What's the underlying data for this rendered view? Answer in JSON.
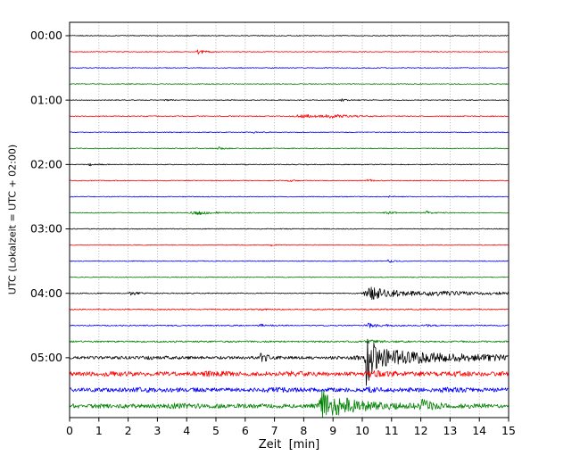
{
  "chart_data": {
    "type": "line",
    "variant": "helicorder-seismogram-drum-plot",
    "title": "",
    "xlabel": "Zeit  [min]",
    "ylabel": "UTC (Lokalzeit = UTC + 02:00)",
    "xlim": [
      0,
      15
    ],
    "grid": {
      "vertical": true,
      "style": "dotted",
      "color": "#aaaaaa"
    },
    "x_ticks": [
      "0",
      "1",
      "2",
      "3",
      "4",
      "5",
      "6",
      "7",
      "8",
      "9",
      "10",
      "11",
      "12",
      "13",
      "14",
      "15"
    ],
    "y_ticks": [
      {
        "label": "00:00",
        "trace_index": 0
      },
      {
        "label": "01:00",
        "trace_index": 4
      },
      {
        "label": "02:00",
        "trace_index": 8
      },
      {
        "label": "03:00",
        "trace_index": 12
      },
      {
        "label": "04:00",
        "trace_index": 16
      },
      {
        "label": "05:00",
        "trace_index": 20
      }
    ],
    "trace_colors_cycle": [
      "#000000",
      "#ff0000",
      "#0000ff",
      "#008000"
    ],
    "minutes_per_trace": 15,
    "traces": [
      {
        "time": "00:00",
        "color": "#000000",
        "base_amp": 0.45,
        "events": []
      },
      {
        "time": "00:15",
        "color": "#ff0000",
        "base_amp": 0.45,
        "events": [
          {
            "t": 4.4,
            "a": 2.2,
            "d": 0.15
          }
        ]
      },
      {
        "time": "00:30",
        "color": "#0000ff",
        "base_amp": 0.45,
        "events": []
      },
      {
        "time": "00:45",
        "color": "#008000",
        "base_amp": 0.5,
        "events": []
      },
      {
        "time": "01:00",
        "color": "#000000",
        "base_amp": 0.45,
        "events": [
          {
            "t": 3.2,
            "a": 1.2,
            "d": 0.12
          },
          {
            "t": 9.3,
            "a": 1.2,
            "d": 0.12
          }
        ]
      },
      {
        "time": "01:15",
        "color": "#ff0000",
        "base_amp": 0.5,
        "events": [
          {
            "t": 7.9,
            "a": 1.8,
            "d": 0.5
          },
          {
            "t": 8.9,
            "a": 1.6,
            "d": 0.4
          }
        ]
      },
      {
        "time": "01:30",
        "color": "#0000ff",
        "base_amp": 0.45,
        "events": [
          {
            "t": 6.3,
            "a": 1.3,
            "d": 0.1
          }
        ]
      },
      {
        "time": "01:45",
        "color": "#008000",
        "base_amp": 0.5,
        "events": [
          {
            "t": 5.1,
            "a": 1.8,
            "d": 0.12
          }
        ]
      },
      {
        "time": "02:00",
        "color": "#000000",
        "base_amp": 0.45,
        "events": [
          {
            "t": 0.7,
            "a": 1.3,
            "d": 0.15
          }
        ]
      },
      {
        "time": "02:15",
        "color": "#ff0000",
        "base_amp": 0.45,
        "events": [
          {
            "t": 7.5,
            "a": 1.3,
            "d": 0.1
          },
          {
            "t": 10.2,
            "a": 1.5,
            "d": 0.12
          }
        ]
      },
      {
        "time": "02:30",
        "color": "#0000ff",
        "base_amp": 0.45,
        "events": [
          {
            "t": 10.9,
            "a": 1.3,
            "d": 0.1
          }
        ]
      },
      {
        "time": "02:45",
        "color": "#008000",
        "base_amp": 0.5,
        "events": [
          {
            "t": 4.3,
            "a": 2.2,
            "d": 0.35
          },
          {
            "t": 10.8,
            "a": 1.6,
            "d": 0.15
          },
          {
            "t": 12.2,
            "a": 1.6,
            "d": 0.15
          }
        ]
      },
      {
        "time": "03:00",
        "color": "#000000",
        "base_amp": 0.45,
        "events": []
      },
      {
        "time": "03:15",
        "color": "#ff0000",
        "base_amp": 0.45,
        "events": [
          {
            "t": 6.9,
            "a": 1.1,
            "d": 0.1
          }
        ]
      },
      {
        "time": "03:30",
        "color": "#0000ff",
        "base_amp": 0.45,
        "events": [
          {
            "t": 10.9,
            "a": 1.6,
            "d": 0.12
          }
        ]
      },
      {
        "time": "03:45",
        "color": "#008000",
        "base_amp": 0.5,
        "events": []
      },
      {
        "time": "04:00",
        "color": "#000000",
        "base_amp": 0.55,
        "events": [
          {
            "t": 2.1,
            "a": 1.8,
            "d": 0.15
          },
          {
            "t": 10.2,
            "a": 6.5,
            "d": 0.3
          },
          {
            "t": 10.6,
            "a": 2.5,
            "d": 1.2
          },
          {
            "t": 12.5,
            "a": 1.2,
            "d": 3
          }
        ]
      },
      {
        "time": "04:15",
        "color": "#ff0000",
        "base_amp": 0.65,
        "events": [
          {
            "t": 6.4,
            "a": 1.3,
            "d": 0.1
          }
        ]
      },
      {
        "time": "04:30",
        "color": "#0000ff",
        "base_amp": 0.65,
        "events": [
          {
            "t": 6.5,
            "a": 1.6,
            "d": 0.12
          },
          {
            "t": 10.2,
            "a": 2.2,
            "d": 0.3
          },
          {
            "t": 12.2,
            "a": 1.4,
            "d": 0.1
          }
        ]
      },
      {
        "time": "04:45",
        "color": "#008000",
        "base_amp": 0.9,
        "events": [
          {
            "t": 10.2,
            "a": 1.4,
            "d": 0.3
          }
        ]
      },
      {
        "time": "05:00",
        "color": "#000000",
        "base_amp": 1.6,
        "events": [
          {
            "t": 2.6,
            "a": 1.0,
            "d": 0.4
          },
          {
            "t": 6.55,
            "a": 5.0,
            "d": 0.12
          },
          {
            "t": 10.15,
            "a": 30.0,
            "d": 0.12
          },
          {
            "t": 10.45,
            "a": 7.0,
            "d": 0.8
          },
          {
            "t": 11.5,
            "a": 3.0,
            "d": 4
          }
        ]
      },
      {
        "time": "05:15",
        "color": "#ff0000",
        "base_amp": 2.2,
        "events": [
          {
            "t": 1.2,
            "a": 1.0,
            "d": 0.5
          },
          {
            "t": 4.8,
            "a": 1.2,
            "d": 0.6
          },
          {
            "t": 7.6,
            "a": 1.0,
            "d": 0.5
          },
          {
            "t": 10.3,
            "a": 1.6,
            "d": 0.7
          },
          {
            "t": 13.2,
            "a": 1.0,
            "d": 0.5
          }
        ]
      },
      {
        "time": "05:30",
        "color": "#0000ff",
        "base_amp": 2.2,
        "events": [
          {
            "t": 2.4,
            "a": 1.0,
            "d": 0.5
          },
          {
            "t": 6.9,
            "a": 1.2,
            "d": 0.5
          },
          {
            "t": 10.2,
            "a": 1.6,
            "d": 0.5
          },
          {
            "t": 12.8,
            "a": 1.0,
            "d": 0.4
          }
        ]
      },
      {
        "time": "05:45",
        "color": "#008000",
        "base_amp": 2.4,
        "events": [
          {
            "t": 3.5,
            "a": 1.0,
            "d": 0.5
          },
          {
            "t": 8.65,
            "a": 17.0,
            "d": 0.3
          },
          {
            "t": 9.4,
            "a": 4.0,
            "d": 1.0
          },
          {
            "t": 12.05,
            "a": 5.5,
            "d": 0.18
          }
        ]
      }
    ]
  }
}
